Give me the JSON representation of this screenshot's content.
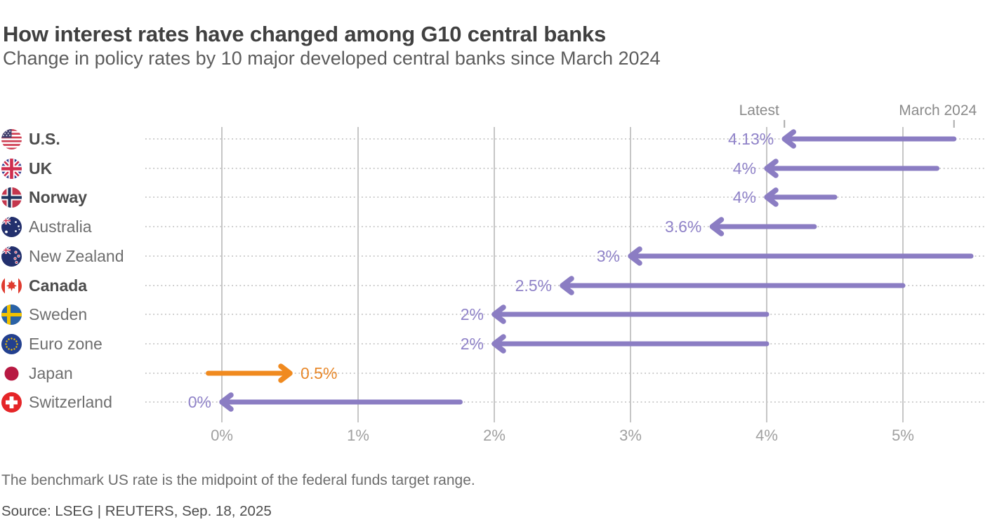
{
  "title": "How interest rates have changed among G10 central banks",
  "subtitle": "Change in policy rates by 10 major developed central banks since March 2024",
  "footnote": "The benchmark US rate is the midpoint of the federal funds target range.",
  "source": "Source: LSEG | REUTERS, Sep. 18, 2025",
  "colors": {
    "arrow_purple": "#8b7dc3",
    "arrow_orange": "#f08a1f",
    "label_purple": "#8f82c8",
    "label_orange": "#e8882a",
    "gridline": "#c6c6c6",
    "dotted_line": "#cbcbcb",
    "header_text": "#8a8a8a",
    "axis_text": "#a0a0a0",
    "tick_mark": "#ababab"
  },
  "chart_data": {
    "type": "arrow",
    "description": "Arrow/dumbbell chart: each arrow points from the March 2024 policy rate to the latest policy rate",
    "column_headers": {
      "latest": "Latest",
      "march": "March 2024"
    },
    "xlabel": "",
    "ylabel": "",
    "x_axis_ticks": [
      "0%",
      "1%",
      "2%",
      "3%",
      "4%",
      "5%"
    ],
    "x_axis_tick_values": [
      0,
      1,
      2,
      3,
      4,
      5
    ],
    "xlim": [
      -0.56,
      5.61
    ],
    "grid": "vertical-solid-plus-horizontal-dotted-row-guides",
    "categories": [
      "U.S.",
      "UK",
      "Norway",
      "Australia",
      "New Zealand",
      "Canada",
      "Sweden",
      "Euro zone",
      "Japan",
      "Switzerland"
    ],
    "series": [
      {
        "name": "Latest",
        "values": [
          4.13,
          4.0,
          4.0,
          3.6,
          3.0,
          2.5,
          2.0,
          2.0,
          0.5,
          0.0
        ]
      },
      {
        "name": "March 2024",
        "values": [
          5.375,
          5.25,
          4.5,
          4.35,
          5.5,
          5.0,
          4.0,
          4.0,
          -0.1,
          1.75
        ]
      }
    ],
    "rows": [
      {
        "country": "U.S.",
        "flag_icon": "us-flag-icon",
        "bold": true,
        "latest": 4.13,
        "march": 5.375,
        "value_label": "4.13%",
        "direction": "down"
      },
      {
        "country": "UK",
        "flag_icon": "uk-flag-icon",
        "bold": true,
        "latest": 4.0,
        "march": 5.25,
        "value_label": "4%",
        "direction": "down"
      },
      {
        "country": "Norway",
        "flag_icon": "norway-flag-icon",
        "bold": true,
        "latest": 4.0,
        "march": 4.5,
        "value_label": "4%",
        "direction": "down"
      },
      {
        "country": "Australia",
        "flag_icon": "australia-flag-icon",
        "bold": false,
        "latest": 3.6,
        "march": 4.35,
        "value_label": "3.6%",
        "direction": "down"
      },
      {
        "country": "New Zealand",
        "flag_icon": "new-zealand-flag-icon",
        "bold": false,
        "latest": 3.0,
        "march": 5.5,
        "value_label": "3%",
        "direction": "down"
      },
      {
        "country": "Canada",
        "flag_icon": "canada-flag-icon",
        "bold": true,
        "latest": 2.5,
        "march": 5.0,
        "value_label": "2.5%",
        "direction": "down"
      },
      {
        "country": "Sweden",
        "flag_icon": "sweden-flag-icon",
        "bold": false,
        "latest": 2.0,
        "march": 4.0,
        "value_label": "2%",
        "direction": "down"
      },
      {
        "country": "Euro zone",
        "flag_icon": "euro-zone-flag-icon",
        "bold": false,
        "latest": 2.0,
        "march": 4.0,
        "value_label": "2%",
        "direction": "down"
      },
      {
        "country": "Japan",
        "flag_icon": "japan-flag-icon",
        "bold": false,
        "latest": 0.5,
        "march": -0.1,
        "value_label": "0.5%",
        "direction": "up"
      },
      {
        "country": "Switzerland",
        "flag_icon": "switzerland-flag-icon",
        "bold": false,
        "latest": 0.0,
        "march": 1.75,
        "value_label": "0%",
        "direction": "down"
      }
    ]
  }
}
